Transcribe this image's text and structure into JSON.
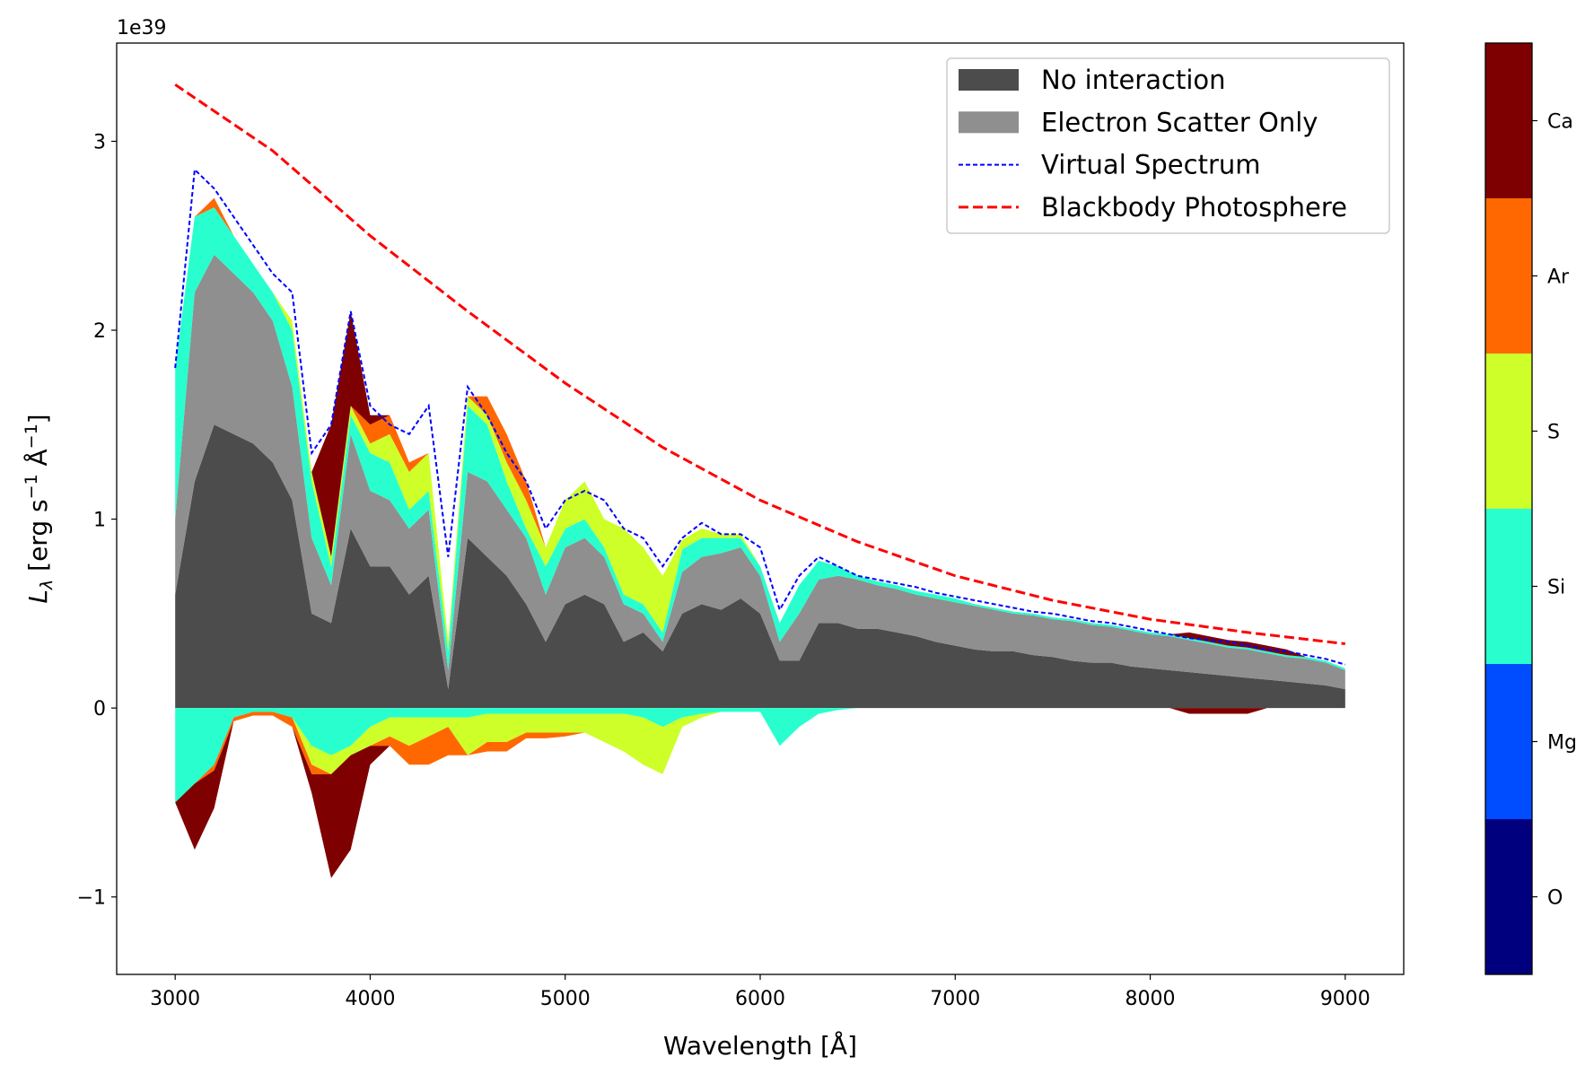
{
  "chart_data": {
    "type": "area",
    "title": "",
    "xlabel": "Wavelength [Å]",
    "ylabel_parts": {
      "main": "L",
      "sub": "λ",
      "unit_a": " [erg s",
      "exp_a": "−1",
      "unit_b": " Å",
      "exp_b": "−1",
      "unit_c": "]"
    },
    "y_offset_label": "1e39",
    "xlim": [
      2700,
      9300
    ],
    "ylim": [
      -1.41,
      3.52
    ],
    "xticks": [
      3000,
      4000,
      5000,
      6000,
      7000,
      8000,
      9000
    ],
    "xtick_labels": [
      "3000",
      "4000",
      "5000",
      "6000",
      "7000",
      "8000",
      "9000"
    ],
    "yticks": [
      -1,
      0,
      1,
      2,
      3
    ],
    "ytick_labels": [
      "−1",
      "0",
      "1",
      "2",
      "3"
    ],
    "grid": false,
    "legend_position": "top-right",
    "legend": [
      {
        "label": "No interaction",
        "kind": "patch",
        "color": "#4c4c4c"
      },
      {
        "label": "Electron Scatter Only",
        "kind": "patch",
        "color": "#8f8f8f"
      },
      {
        "label": "Virtual Spectrum",
        "kind": "dashed-line-fine",
        "color": "#0000ff"
      },
      {
        "label": "Blackbody Photosphere",
        "kind": "dashed-line",
        "color": "#ff0000"
      }
    ],
    "wavelength": [
      3000,
      3100,
      3200,
      3300,
      3400,
      3500,
      3600,
      3700,
      3800,
      3900,
      4000,
      4100,
      4200,
      4300,
      4400,
      4500,
      4600,
      4700,
      4800,
      4900,
      5000,
      5100,
      5200,
      5300,
      5400,
      5500,
      5600,
      5700,
      5800,
      5900,
      6000,
      6100,
      6200,
      6300,
      6400,
      6500,
      6600,
      6700,
      6800,
      6900,
      7000,
      7100,
      7200,
      7300,
      7400,
      7500,
      7600,
      7700,
      7800,
      7900,
      8000,
      8100,
      8200,
      8300,
      8400,
      8500,
      8600,
      8700,
      8800,
      8900,
      9000
    ],
    "emission_stack": [
      {
        "name": "No interaction",
        "color": "#4c4c4c",
        "values": [
          0.6,
          1.2,
          1.5,
          1.45,
          1.4,
          1.3,
          1.1,
          0.5,
          0.45,
          0.95,
          0.75,
          0.75,
          0.6,
          0.7,
          0.1,
          0.9,
          0.8,
          0.7,
          0.55,
          0.35,
          0.55,
          0.6,
          0.55,
          0.35,
          0.4,
          0.3,
          0.5,
          0.55,
          0.52,
          0.58,
          0.5,
          0.25,
          0.25,
          0.45,
          0.45,
          0.42,
          0.42,
          0.4,
          0.38,
          0.35,
          0.33,
          0.31,
          0.3,
          0.3,
          0.28,
          0.27,
          0.25,
          0.24,
          0.24,
          0.22,
          0.21,
          0.2,
          0.19,
          0.18,
          0.17,
          0.16,
          0.15,
          0.14,
          0.13,
          0.12,
          0.1
        ]
      },
      {
        "name": "Electron Scatter Only",
        "color": "#8f8f8f",
        "values": [
          0.4,
          1.0,
          0.9,
          0.85,
          0.8,
          0.75,
          0.6,
          0.4,
          0.2,
          0.5,
          0.4,
          0.35,
          0.35,
          0.35,
          0.1,
          0.35,
          0.4,
          0.35,
          0.35,
          0.25,
          0.3,
          0.3,
          0.25,
          0.2,
          0.1,
          0.05,
          0.22,
          0.25,
          0.3,
          0.27,
          0.2,
          0.1,
          0.25,
          0.23,
          0.25,
          0.26,
          0.23,
          0.23,
          0.22,
          0.23,
          0.23,
          0.23,
          0.22,
          0.2,
          0.21,
          0.2,
          0.21,
          0.2,
          0.19,
          0.19,
          0.18,
          0.18,
          0.17,
          0.16,
          0.15,
          0.15,
          0.14,
          0.13,
          0.13,
          0.12,
          0.1
        ]
      },
      {
        "name": "Si",
        "color": "#29ffce",
        "values": [
          0.8,
          0.4,
          0.25,
          0.2,
          0.15,
          0.15,
          0.3,
          0.3,
          0.1,
          0.1,
          0.2,
          0.2,
          0.1,
          0.1,
          0.1,
          0.35,
          0.3,
          0.15,
          0.05,
          0.15,
          0.1,
          0.1,
          0.05,
          0.05,
          0.05,
          0.05,
          0.12,
          0.1,
          0.08,
          0.05,
          0.05,
          0.1,
          0.15,
          0.1,
          0.05,
          0.02,
          0.02,
          0.02,
          0.02,
          0.02,
          0.02,
          0.01,
          0.01,
          0.01,
          0.01,
          0.01,
          0.01,
          0.01,
          0.01,
          0.01,
          0.01,
          0.01,
          0.01,
          0.01,
          0.01,
          0.01,
          0.01,
          0.01,
          0.01,
          0.01,
          0.01
        ]
      },
      {
        "name": "S",
        "color": "#ceff29",
        "values": [
          0,
          0,
          0,
          0,
          0,
          0,
          0.05,
          0.05,
          0.05,
          0.05,
          0.05,
          0.15,
          0.2,
          0.2,
          0.05,
          0.05,
          0.05,
          0.1,
          0.15,
          0.1,
          0.15,
          0.2,
          0.15,
          0.35,
          0.3,
          0.3,
          0.05,
          0.05,
          0.02,
          0.02,
          0,
          0,
          0,
          0,
          0,
          0,
          0,
          0,
          0,
          0,
          0,
          0,
          0,
          0,
          0,
          0,
          0,
          0,
          0,
          0,
          0,
          0,
          0,
          0,
          0,
          0,
          0,
          0,
          0,
          0,
          0
        ]
      },
      {
        "name": "Ar",
        "color": "#ff6800",
        "values": [
          0,
          0,
          0.05,
          0,
          0,
          0,
          0,
          0,
          0,
          0,
          0.1,
          0.1,
          0.05,
          0,
          0,
          0,
          0.1,
          0.15,
          0.1,
          0,
          0,
          0,
          0,
          0,
          0,
          0,
          0,
          0,
          0,
          0,
          0,
          0,
          0,
          0,
          0,
          0,
          0,
          0,
          0,
          0,
          0,
          0,
          0,
          0,
          0,
          0,
          0,
          0,
          0,
          0,
          0,
          0,
          0,
          0,
          0,
          0,
          0,
          0,
          0,
          0,
          0
        ]
      },
      {
        "name": "Ca",
        "color": "#7f0000",
        "values": [
          0,
          0,
          0,
          0,
          0,
          0,
          0,
          0,
          0.7,
          0.5,
          0.05,
          0,
          0,
          0,
          0,
          0,
          0,
          0,
          0,
          0,
          0,
          0,
          0,
          0,
          0,
          0,
          0,
          0,
          0,
          0,
          0,
          0,
          0,
          0,
          0,
          0,
          0,
          0,
          0,
          0,
          0,
          0,
          0,
          0,
          0,
          0,
          0,
          0,
          0,
          0,
          0,
          0,
          0.03,
          0.03,
          0.03,
          0.03,
          0.03,
          0.03,
          0,
          0,
          0
        ]
      }
    ],
    "absorption_stack": [
      {
        "name": "Si",
        "color": "#29ffce",
        "values": [
          -0.5,
          -0.4,
          -0.3,
          -0.05,
          -0.02,
          -0.02,
          -0.05,
          -0.2,
          -0.25,
          -0.2,
          -0.1,
          -0.05,
          -0.05,
          -0.05,
          -0.05,
          -0.05,
          -0.03,
          -0.03,
          -0.03,
          -0.03,
          -0.03,
          -0.03,
          -0.03,
          -0.03,
          -0.05,
          -0.1,
          -0.05,
          -0.03,
          -0.02,
          -0.02,
          -0.02,
          -0.2,
          -0.1,
          -0.03,
          -0.01,
          0,
          0,
          0,
          0,
          0,
          0,
          0,
          0,
          0,
          0,
          0,
          0,
          0,
          0,
          0,
          0,
          0,
          0,
          0,
          0,
          0,
          0,
          0,
          0,
          0,
          0
        ]
      },
      {
        "name": "S",
        "color": "#ceff29",
        "values": [
          0,
          0,
          0,
          0,
          0,
          0,
          0,
          -0.1,
          -0.1,
          -0.05,
          -0.1,
          -0.1,
          -0.15,
          -0.1,
          -0.05,
          -0.2,
          -0.15,
          -0.15,
          -0.1,
          -0.1,
          -0.1,
          -0.1,
          -0.15,
          -0.2,
          -0.25,
          -0.25,
          -0.05,
          -0.02,
          0,
          0,
          0,
          0,
          0,
          0,
          0,
          0,
          0,
          0,
          0,
          0,
          0,
          0,
          0,
          0,
          0,
          0,
          0,
          0,
          0,
          0,
          0,
          0,
          0,
          0,
          0,
          0,
          0,
          0,
          0,
          0,
          0
        ]
      },
      {
        "name": "Ar",
        "color": "#ff6800",
        "values": [
          0,
          0,
          -0.03,
          -0.02,
          -0.02,
          -0.02,
          -0.05,
          -0.05,
          0,
          0,
          0,
          -0.05,
          -0.1,
          -0.15,
          -0.15,
          0,
          -0.05,
          -0.05,
          -0.03,
          -0.03,
          -0.02,
          0,
          0,
          0,
          0,
          0,
          0,
          0,
          0,
          0,
          0,
          0,
          0,
          0,
          0,
          0,
          0,
          0,
          0,
          0,
          0,
          0,
          0,
          0,
          0,
          0,
          0,
          0,
          0,
          0,
          0,
          0,
          0,
          0,
          0,
          0,
          0,
          0,
          0,
          0,
          0
        ]
      },
      {
        "name": "Ca",
        "color": "#7f0000",
        "values": [
          0,
          -0.35,
          -0.2,
          0,
          0,
          0,
          0,
          -0.1,
          -0.55,
          -0.5,
          -0.1,
          0,
          0,
          0,
          0,
          0,
          0,
          0,
          0,
          0,
          0,
          0,
          0,
          0,
          0,
          0,
          0,
          0,
          0,
          0,
          0,
          0,
          0,
          0,
          0,
          0,
          0,
          0,
          0,
          0,
          0,
          0,
          0,
          0,
          0,
          0,
          0,
          0,
          0,
          0,
          0,
          0,
          -0.03,
          -0.03,
          -0.03,
          -0.03,
          0,
          0,
          0,
          0,
          0
        ]
      }
    ],
    "virtual_spectrum": {
      "name": "Virtual Spectrum",
      "color": "#0000ff",
      "values": [
        1.8,
        2.85,
        2.75,
        2.6,
        2.45,
        2.3,
        2.2,
        1.35,
        1.5,
        2.1,
        1.6,
        1.5,
        1.45,
        1.6,
        0.8,
        1.7,
        1.55,
        1.35,
        1.2,
        0.95,
        1.1,
        1.15,
        1.1,
        0.95,
        0.9,
        0.75,
        0.9,
        0.98,
        0.92,
        0.92,
        0.85,
        0.52,
        0.7,
        0.8,
        0.75,
        0.7,
        0.68,
        0.66,
        0.64,
        0.61,
        0.59,
        0.57,
        0.55,
        0.53,
        0.51,
        0.5,
        0.48,
        0.46,
        0.45,
        0.43,
        0.41,
        0.39,
        0.37,
        0.36,
        0.35,
        0.33,
        0.31,
        0.3,
        0.28,
        0.26,
        0.23
      ]
    },
    "blackbody": {
      "name": "Blackbody Photosphere",
      "color": "#ff0000",
      "wavelength": [
        3000,
        3500,
        4000,
        4500,
        5000,
        5500,
        6000,
        6500,
        7000,
        7500,
        8000,
        8500,
        9000
      ],
      "values": [
        3.3,
        2.95,
        2.5,
        2.1,
        1.72,
        1.38,
        1.1,
        0.88,
        0.7,
        0.57,
        0.47,
        0.4,
        0.34
      ]
    },
    "colorbar": {
      "labels": [
        "O",
        "Mg",
        "Si",
        "S",
        "Ar",
        "Ca"
      ],
      "colors": [
        "#00007f",
        "#004cff",
        "#29ffce",
        "#ceff29",
        "#ff6800",
        "#7f0000"
      ]
    }
  }
}
